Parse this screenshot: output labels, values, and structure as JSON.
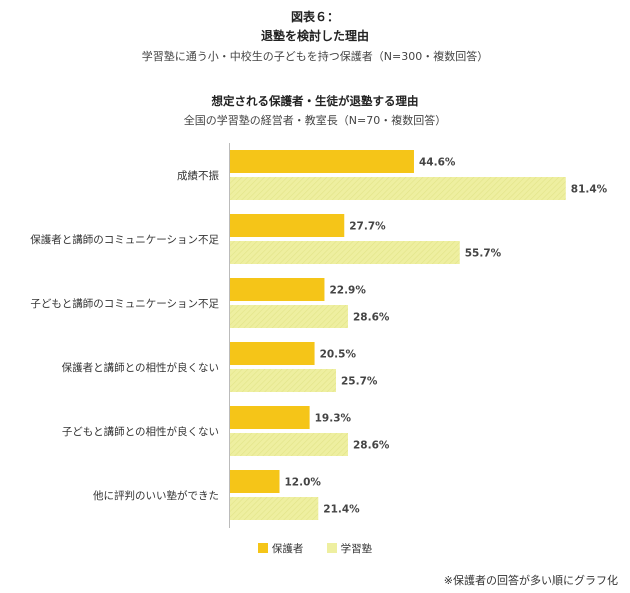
{
  "header": {
    "figure_label": "図表６：",
    "title": "退塾を検討した理由",
    "subtitle": "学習塾に通う小・中校生の子どもを持つ保護者（N=300・複数回答）"
  },
  "chart_data": {
    "type": "bar",
    "orientation": "horizontal",
    "title": "想定される保護者・生徒が退塾する理由",
    "subtitle": "全国の学習塾の経営者・教室長（N=70・複数回答）",
    "categories": [
      "成績不振",
      "保護者と講師のコミュニケーション不足",
      "子どもと講師のコミュニケーション不足",
      "保護者と講師との相性が良くない",
      "子どもと講師との相性が良くない",
      "他に評判のいい塾ができた"
    ],
    "series": [
      {
        "name": "保護者",
        "values": [
          44.6,
          27.7,
          22.9,
          20.5,
          19.3,
          12.0
        ],
        "color": "#F5C518"
      },
      {
        "name": "学習塾",
        "values": [
          81.4,
          55.7,
          28.6,
          25.7,
          28.6,
          21.4
        ],
        "color": "#EEEFA0"
      }
    ],
    "value_suffix": "%",
    "legend_position": "bottom",
    "grid": false
  },
  "footnote": "※保護者の回答が多い順にグラフ化"
}
